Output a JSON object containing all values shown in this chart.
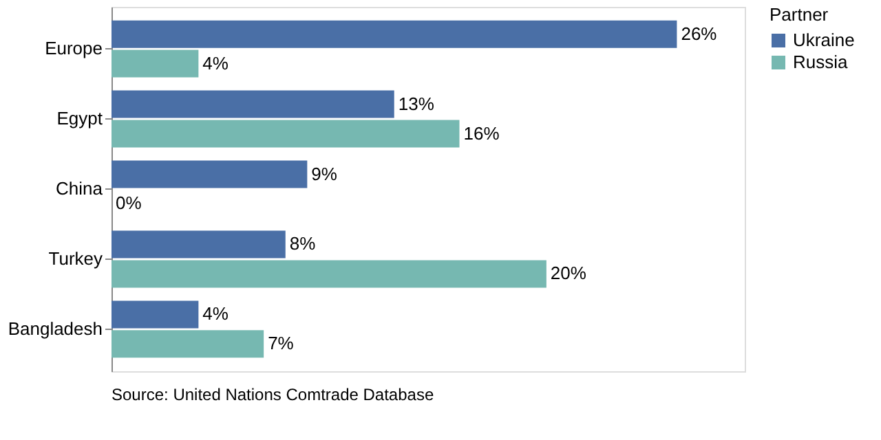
{
  "chart_data": {
    "type": "bar",
    "orientation": "horizontal",
    "categories": [
      "Europe",
      "Egypt",
      "China",
      "Turkey",
      "Bangladesh"
    ],
    "legend_title": "Partner",
    "series": [
      {
        "name": "Ukraine",
        "color": "#4a6fa6",
        "values": [
          26,
          13,
          9,
          8,
          4
        ],
        "value_labels": [
          "26%",
          "13%",
          "9%",
          "8%",
          "4%"
        ]
      },
      {
        "name": "Russia",
        "color": "#76b8b1",
        "values": [
          4,
          16,
          0,
          20,
          7
        ],
        "value_labels": [
          "4%",
          "16%",
          "0%",
          "20%",
          "7%"
        ]
      }
    ],
    "annotations": [
      "Source: United Nations Comtrade Database"
    ],
    "legend": "top right",
    "grid": false,
    "tick_labels": "y"
  }
}
